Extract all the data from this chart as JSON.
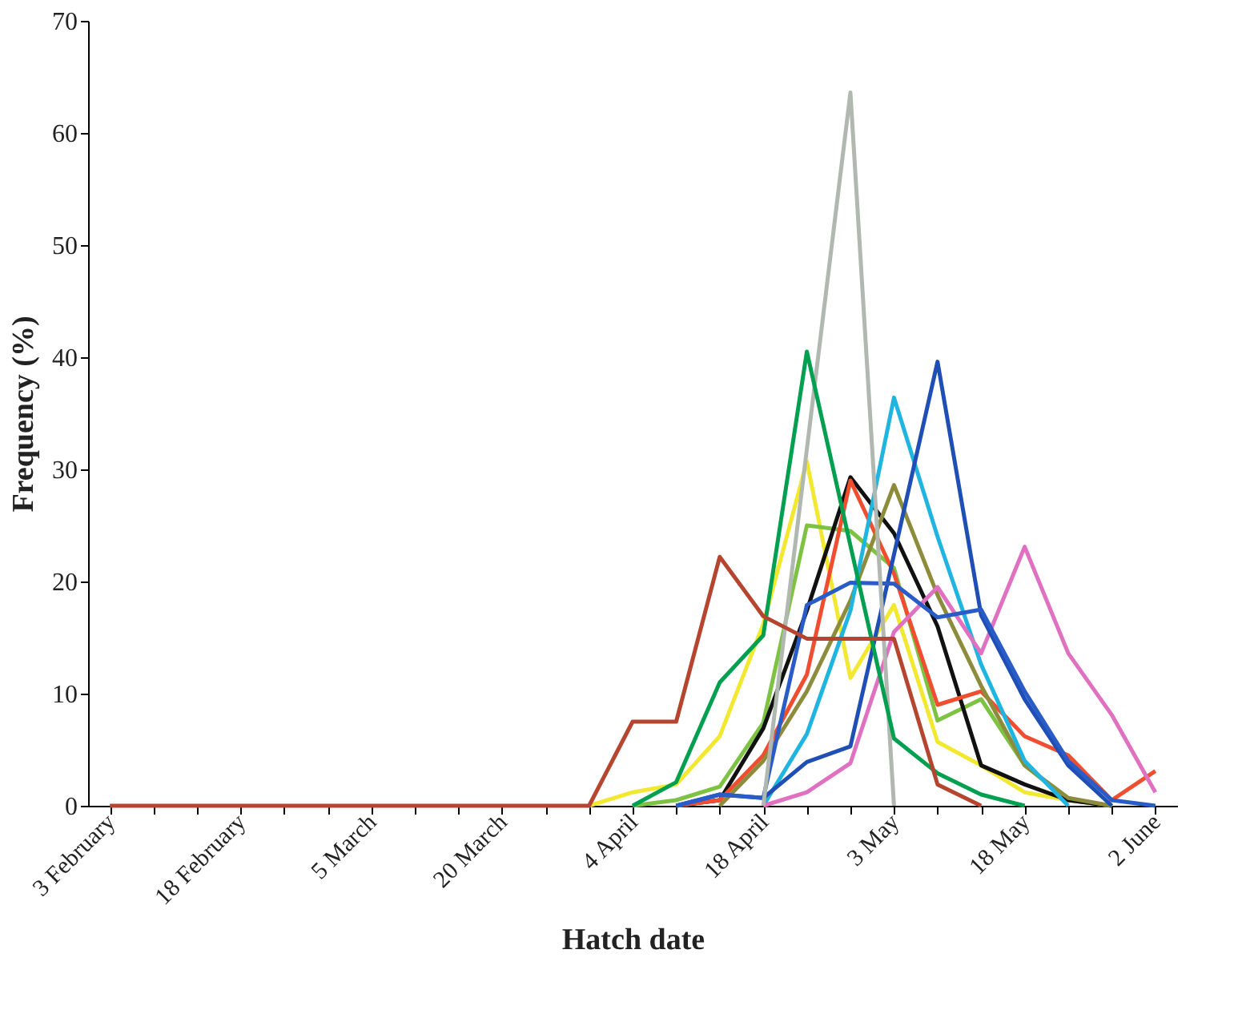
{
  "chart_data": {
    "type": "line",
    "xlabel": "Hatch date",
    "ylabel": "Frequency (%)",
    "ylim": [
      0,
      70
    ],
    "yticks": [
      0,
      10,
      20,
      30,
      40,
      50,
      60,
      70
    ],
    "grid": false,
    "legend": false,
    "marker": "none",
    "line_style": "solid",
    "categories": [
      "3 February",
      null,
      null,
      "18 February",
      null,
      null,
      "5 March",
      null,
      null,
      "20 March",
      null,
      null,
      "4 April",
      null,
      null,
      "18 April",
      null,
      null,
      "3 May",
      null,
      null,
      "18 May",
      null,
      null,
      "2 June"
    ],
    "series": [
      {
        "color": "#f2e830",
        "values": [
          null,
          null,
          null,
          null,
          null,
          null,
          null,
          null,
          null,
          null,
          null,
          0,
          1.2,
          1.9,
          6.2,
          16.2,
          30.7,
          11.4,
          17.9,
          5.7,
          3.6,
          1.2,
          0.5,
          0,
          null
        ]
      },
      {
        "color": "#7dc242",
        "values": [
          null,
          null,
          null,
          null,
          null,
          null,
          null,
          null,
          null,
          null,
          null,
          null,
          0,
          0.5,
          1.7,
          7.4,
          25.0,
          24.5,
          21.2,
          7.6,
          9.5,
          3.6,
          0.5,
          0,
          null
        ]
      },
      {
        "color": "#111111",
        "values": [
          null,
          null,
          null,
          null,
          null,
          null,
          null,
          null,
          null,
          null,
          null,
          null,
          null,
          0,
          0.5,
          6.9,
          17.4,
          29.3,
          24.3,
          16.0,
          3.6,
          1.9,
          0.5,
          0,
          null
        ]
      },
      {
        "color": "#f04e30",
        "values": [
          null,
          null,
          null,
          null,
          null,
          null,
          null,
          null,
          null,
          null,
          null,
          null,
          null,
          0,
          0.5,
          4.5,
          11.7,
          29.0,
          20.7,
          9.0,
          10.2,
          6.2,
          4.5,
          0.5,
          3.1
        ]
      },
      {
        "color": "#8c8c3c",
        "values": [
          null,
          null,
          null,
          null,
          null,
          null,
          null,
          null,
          null,
          null,
          null,
          null,
          null,
          null,
          0,
          4.0,
          10.2,
          18.3,
          28.6,
          18.8,
          10.7,
          3.6,
          0.7,
          0,
          null
        ]
      },
      {
        "color": "#20b4e0",
        "values": [
          null,
          null,
          null,
          null,
          null,
          null,
          null,
          null,
          null,
          null,
          null,
          null,
          null,
          null,
          null,
          0,
          6.4,
          17.4,
          36.4,
          24.0,
          12.6,
          4.0,
          0,
          null,
          null
        ]
      },
      {
        "color": "#e070c0",
        "values": [
          null,
          null,
          null,
          null,
          null,
          null,
          null,
          null,
          null,
          null,
          null,
          null,
          null,
          null,
          null,
          0,
          1.2,
          3.8,
          15.5,
          19.5,
          13.6,
          23.1,
          13.6,
          8.1,
          1.2
        ]
      },
      {
        "color": "#1f4fb5",
        "values": [
          null,
          null,
          null,
          null,
          null,
          null,
          null,
          null,
          null,
          null,
          null,
          null,
          null,
          0,
          1.0,
          0.7,
          3.9,
          5.3,
          22.4,
          39.6,
          17.0,
          9.5,
          3.6,
          0,
          null
        ]
      },
      {
        "color": "#2a5cc8",
        "values": [
          null,
          null,
          null,
          null,
          null,
          null,
          null,
          null,
          null,
          null,
          null,
          null,
          null,
          0,
          1.0,
          0.7,
          17.9,
          19.9,
          19.8,
          16.8,
          17.5,
          10.2,
          4.0,
          0.5,
          0
        ]
      },
      {
        "color": "#b0b8b0",
        "values": [
          null,
          null,
          null,
          null,
          null,
          null,
          null,
          null,
          null,
          null,
          null,
          null,
          null,
          null,
          null,
          0,
          31.8,
          63.6,
          0,
          null,
          null,
          null,
          null,
          null,
          null
        ]
      },
      {
        "color": "#00a050",
        "values": [
          null,
          null,
          null,
          null,
          null,
          null,
          null,
          null,
          null,
          null,
          null,
          null,
          0,
          2.1,
          11.0,
          15.2,
          40.5,
          23.2,
          6.0,
          2.9,
          1.0,
          0,
          null,
          null,
          null
        ]
      },
      {
        "color": "#b5452e",
        "values": [
          0,
          0,
          0,
          0,
          0,
          0,
          0,
          0,
          0,
          0,
          0,
          0,
          7.5,
          7.5,
          22.2,
          16.9,
          14.9,
          14.9,
          14.9,
          1.9,
          0,
          null,
          null,
          null,
          null
        ]
      }
    ]
  }
}
